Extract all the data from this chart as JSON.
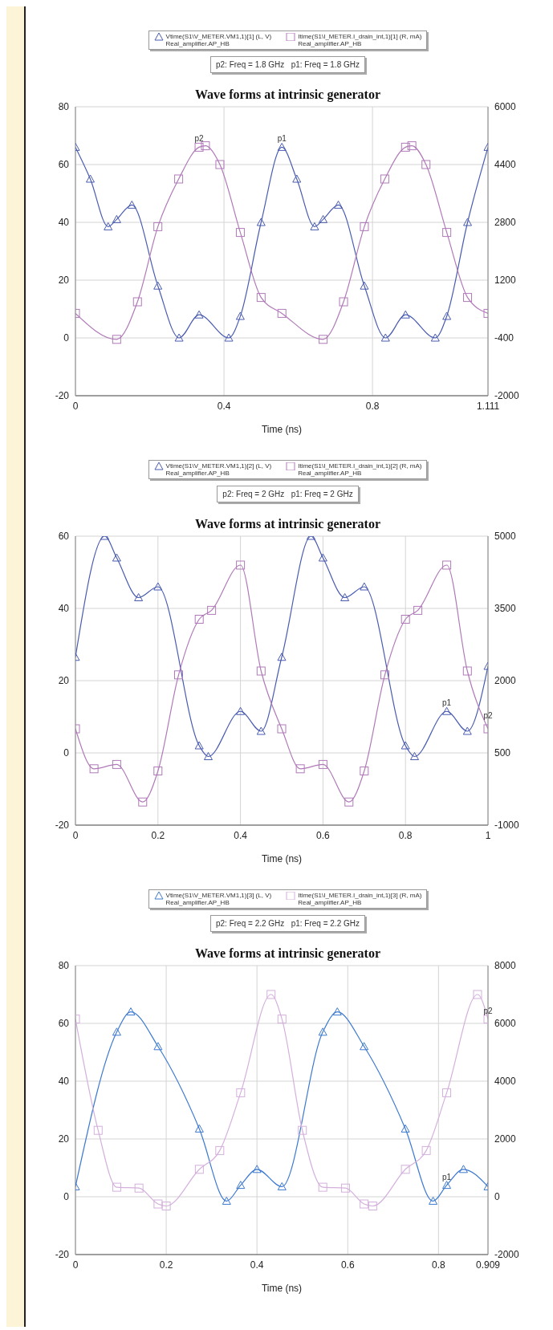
{
  "chart_data": [
    {
      "type": "line",
      "title": "Wave forms at intrinsic generator",
      "xlabel": "Time (ns)",
      "legend": "top",
      "grid": true,
      "line_style": "solid",
      "xlim": [
        0,
        1.111
      ],
      "xticks": [
        0,
        0.4,
        0.8,
        1.111
      ],
      "ylim": [
        -20,
        80
      ],
      "yticks": [
        -20,
        0,
        20,
        40,
        60,
        80
      ],
      "y2lim": [
        -2000,
        6000
      ],
      "y2ticks": [
        -2000,
        -400,
        1200,
        2800,
        4400,
        6000
      ],
      "annotations": [
        "p2: Freq = 1.8 GHz   p1: Freq = 1.8 GHz",
        {
          "text": "p2",
          "x": 0.333,
          "y": 66
        },
        {
          "text": "p1",
          "x": 0.556,
          "y": 66
        }
      ],
      "series": [
        {
          "name": "Vtime(S1\\V_METER.VM1,1)[1] (L, V)\nReal_amplifier.AP_HB",
          "color": "#4a5cb0",
          "marker": "triangle",
          "x": [
            0,
            0.04,
            0.088,
            0.111,
            0.152,
            0.222,
            0.279,
            0.333,
            0.413,
            0.444,
            0.5,
            0.556,
            0.596,
            0.644,
            0.667,
            0.708,
            0.778,
            0.835,
            0.889,
            0.969,
            1.0,
            1.056,
            1.111
          ],
          "values": [
            66,
            55,
            38.5,
            41,
            46,
            18,
            0,
            8,
            0,
            7.5,
            40,
            66,
            55,
            38.5,
            41,
            46,
            18,
            0,
            8,
            0,
            7.5,
            40,
            66
          ]
        },
        {
          "name": "Itime(S1\\I_METER.I_drain_int,1)[1] (R, mA)\nReal_amplifier.AP_HB",
          "color": "#b07ab8",
          "marker": "square",
          "axis": "y2",
          "x": [
            0,
            0.111,
            0.167,
            0.222,
            0.278,
            0.333,
            0.35,
            0.389,
            0.444,
            0.5,
            0.556,
            0.667,
            0.722,
            0.778,
            0.833,
            0.889,
            0.906,
            0.944,
            1.0,
            1.056,
            1.111
          ],
          "values": [
            280,
            -440,
            600,
            2680,
            4000,
            4880,
            4920,
            4400,
            2520,
            720,
            280,
            -440,
            600,
            2680,
            4000,
            4880,
            4920,
            4400,
            2520,
            720,
            280
          ]
        }
      ]
    },
    {
      "type": "line",
      "title": "Wave forms at intrinsic generator",
      "xlabel": "Time (ns)",
      "legend": "top",
      "grid": true,
      "line_style": "solid",
      "xlim": [
        0,
        1
      ],
      "xticks": [
        0,
        0.2,
        0.4,
        0.6,
        0.8,
        1
      ],
      "ylim": [
        -20,
        60
      ],
      "yticks": [
        -20,
        0,
        20,
        40,
        60
      ],
      "y2lim": [
        -1000,
        5000
      ],
      "y2ticks": [
        -1000,
        500,
        2000,
        3500,
        5000
      ],
      "annotations": [
        "p2: Freq = 2 GHz   p1: Freq = 2 GHz",
        {
          "text": "p1",
          "x": 0.9,
          "y": 11.5
        },
        {
          "text": "p2",
          "x": 1,
          "y": 8
        }
      ],
      "series": [
        {
          "name": "Vtime(S1\\V_METER.VM1,1)[2] (L, V)\nReal_amplifier.AP_HB",
          "color": "#4a5cb0",
          "marker": "triangle",
          "x": [
            0,
            0.071,
            0.1,
            0.153,
            0.2,
            0.3,
            0.322,
            0.4,
            0.45,
            0.5,
            0.571,
            0.6,
            0.653,
            0.7,
            0.8,
            0.822,
            0.9,
            0.95,
            1.0
          ],
          "values": [
            26.5,
            60,
            54,
            43,
            46,
            2,
            -1,
            11.5,
            6,
            26.5,
            60,
            54,
            43,
            46,
            2,
            -1,
            11.5,
            6,
            24
          ]
        },
        {
          "name": "Itime(S1\\I_METER.I_drain_int,1)[2] (R, mA)\nReal_amplifier.AP_HB",
          "color": "#b07ab8",
          "marker": "square",
          "axis": "y2",
          "x": [
            0,
            0.045,
            0.1,
            0.163,
            0.2,
            0.25,
            0.3,
            0.33,
            0.4,
            0.45,
            0.5,
            0.545,
            0.6,
            0.663,
            0.7,
            0.75,
            0.8,
            0.83,
            0.9,
            0.95,
            1.0
          ],
          "values": [
            1000,
            170,
            260,
            -520,
            125,
            2120,
            3275,
            3460,
            4400,
            2200,
            1000,
            170,
            260,
            -520,
            125,
            2120,
            3275,
            3460,
            4400,
            2200,
            1000
          ]
        }
      ]
    },
    {
      "type": "line",
      "title": "Wave forms at intrinsic generator",
      "xlabel": "Time (ns)",
      "legend": "top",
      "grid": true,
      "line_style": "solid",
      "xlim": [
        0,
        0.909
      ],
      "xticks": [
        0,
        0.2,
        0.4,
        0.6,
        0.8,
        0.909
      ],
      "ylim": [
        -20,
        80
      ],
      "yticks": [
        -20,
        0,
        20,
        40,
        60,
        80
      ],
      "y2lim": [
        -2000,
        8000
      ],
      "y2ticks": [
        -2000,
        0,
        2000,
        4000,
        6000,
        8000
      ],
      "annotations": [
        "p2: Freq = 2.2 GHz   p1: Freq = 2.2 GHz",
        {
          "text": "p1",
          "x": 0.818,
          "y": 4
        },
        {
          "text": "p2",
          "x": 0.909,
          "y": 61.5
        }
      ],
      "series": [
        {
          "name": "Vtime(S1\\V_METER.VM1,1)[3] (L, V)\nReal_amplifier.AP_HB",
          "color": "#3d7ad0",
          "marker": "triangle",
          "x": [
            0,
            0.091,
            0.122,
            0.182,
            0.273,
            0.333,
            0.364,
            0.4,
            0.455,
            0.545,
            0.577,
            0.636,
            0.727,
            0.788,
            0.818,
            0.855,
            0.909
          ],
          "values": [
            3.5,
            57,
            64,
            52,
            23.5,
            -1.5,
            4,
            9.5,
            3.5,
            57,
            64,
            52,
            23.5,
            -1.5,
            4,
            9.5,
            3.5
          ]
        },
        {
          "name": "Itime(S1\\I_METER.I_drain_int,1)[3] (R, mA)\nReal_amplifier.AP_HB",
          "color": "#d4b0dc",
          "marker": "square",
          "axis": "y2",
          "x": [
            0,
            0.05,
            0.091,
            0.14,
            0.182,
            0.2,
            0.273,
            0.318,
            0.364,
            0.431,
            0.455,
            0.5,
            0.545,
            0.595,
            0.636,
            0.655,
            0.727,
            0.773,
            0.818,
            0.886,
            0.909
          ],
          "values": [
            6150,
            2300,
            330,
            300,
            -250,
            -320,
            950,
            1600,
            3600,
            7000,
            6150,
            2300,
            330,
            300,
            -250,
            -320,
            950,
            1600,
            3600,
            7000,
            6150
          ]
        }
      ]
    }
  ]
}
